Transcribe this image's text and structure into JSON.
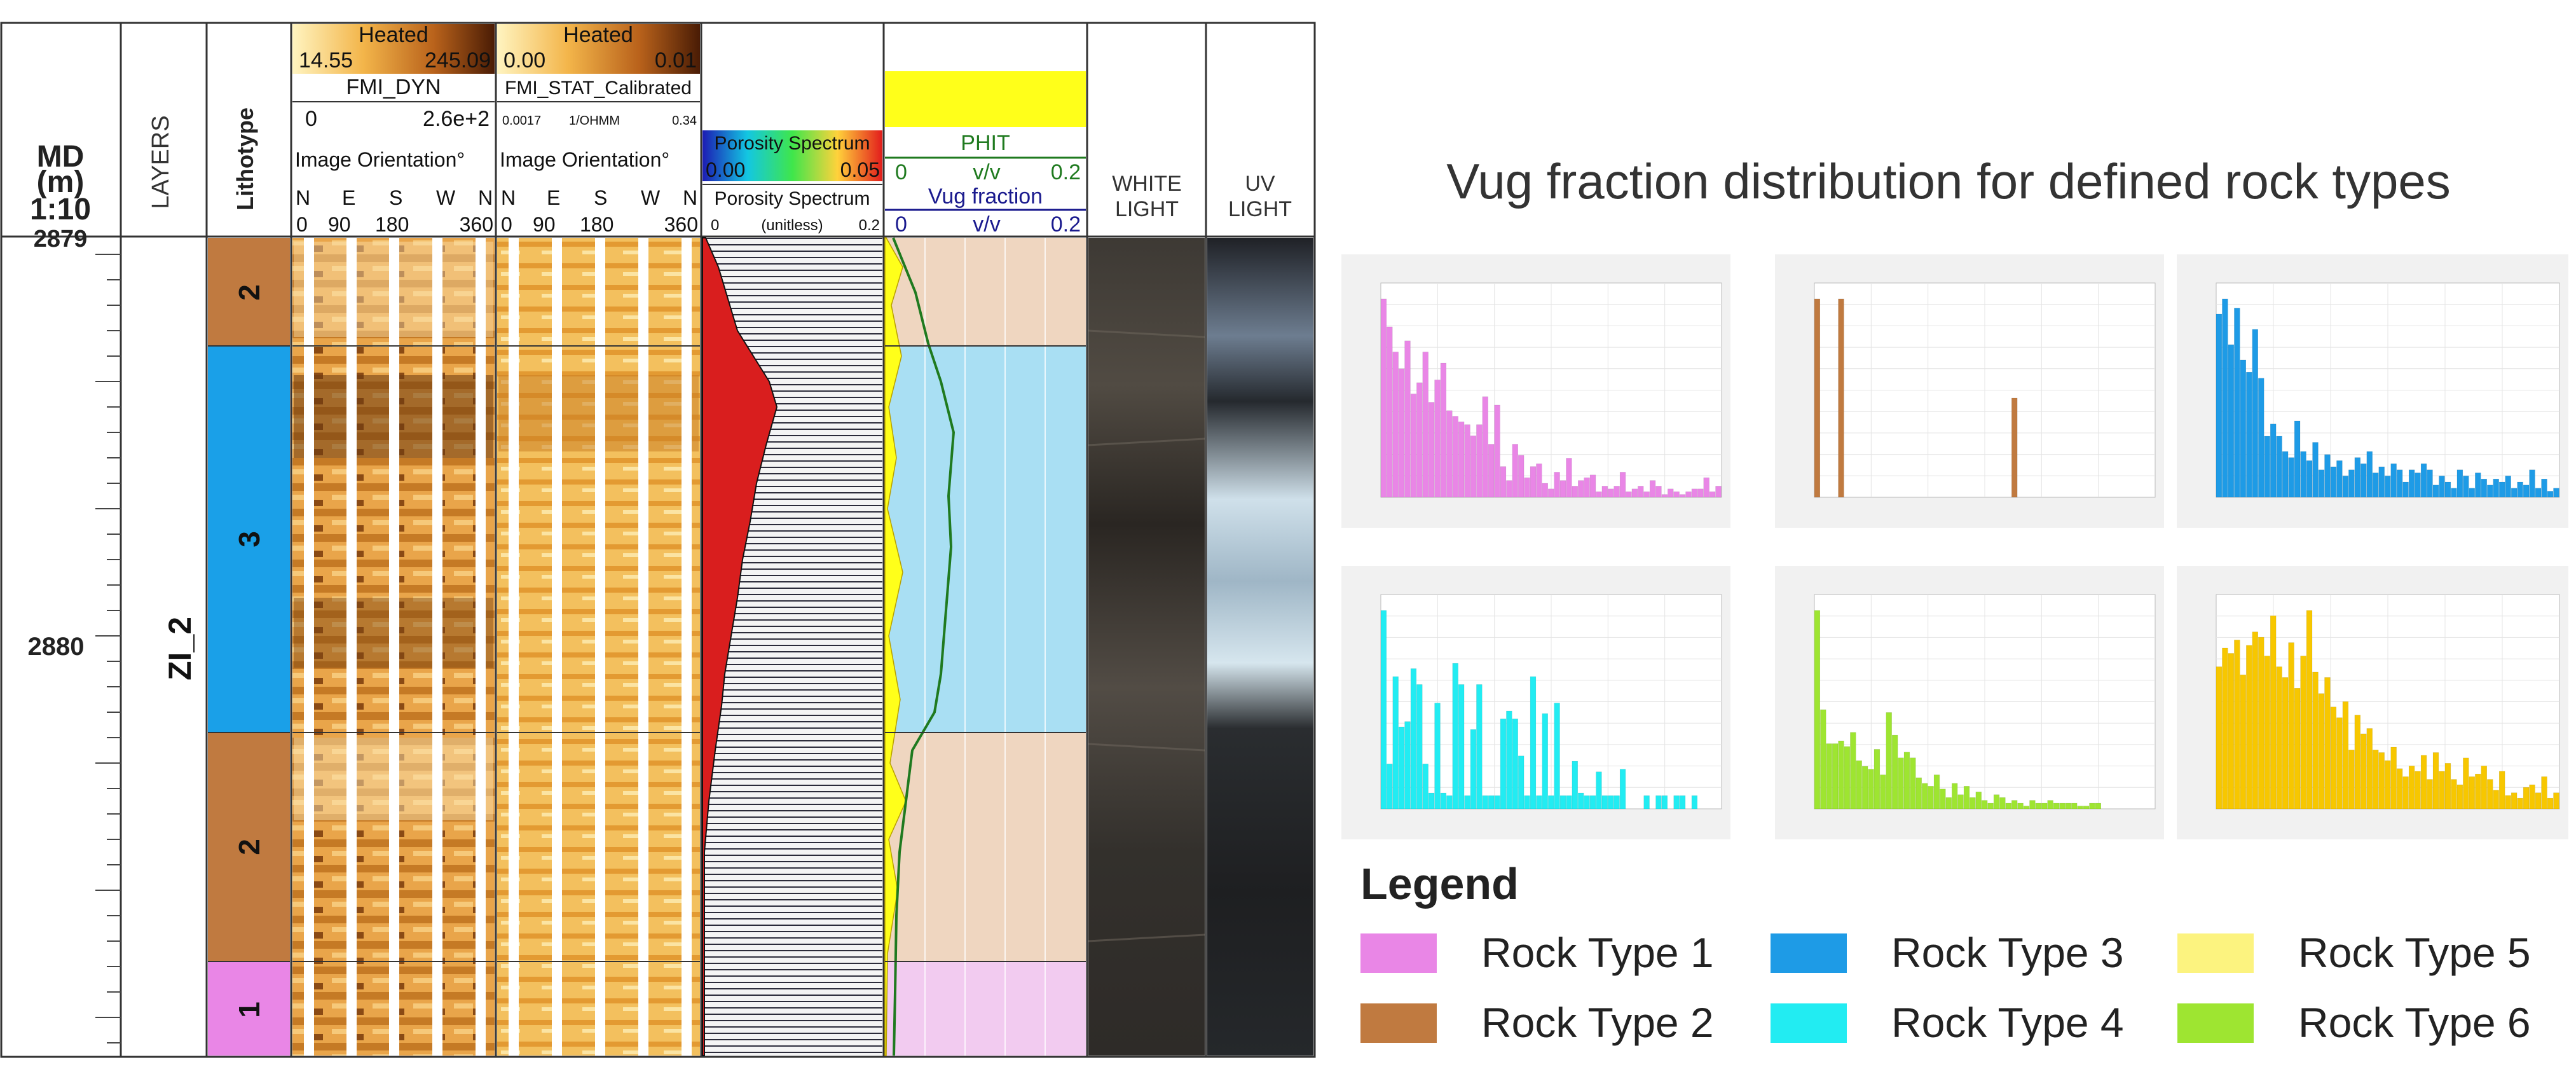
{
  "log": {
    "md_header": [
      "MD",
      "(m)",
      "1:10"
    ],
    "layers_header": "LAYERS",
    "lithotype_header": "Lithotype",
    "depth_labels": [
      "2879",
      "2880"
    ],
    "zone_label": "ZI_2",
    "fmi_dyn": {
      "scale_name": "Heated",
      "min": "14.55",
      "max": "245.09",
      "name": "FMI_DYN",
      "range_min": "0",
      "range_max": "2.6e+2",
      "orientation_label": "Image Orientation°",
      "dirs": [
        "N",
        "E",
        "S",
        "W",
        "N"
      ],
      "ticks": [
        "0",
        "90",
        "180",
        "360"
      ]
    },
    "fmi_stat": {
      "scale_name": "Heated",
      "min": "0.00",
      "max": "0.01",
      "name": "FMI_STAT_Calibrated",
      "range_min": "0.0017",
      "unit": "1/OHMM",
      "range_max": "0.34",
      "orientation_label": "Image Orientation°",
      "dirs": [
        "N",
        "E",
        "S",
        "W",
        "N"
      ],
      "ticks": [
        "0",
        "90",
        "180",
        "360"
      ]
    },
    "porosity_spectrum": {
      "colorbar_label": "Porosity Spectrum",
      "min": "0.00",
      "max": "0.05",
      "name": "Porosity Spectrum",
      "range_min": "0",
      "unit": "(unitless)",
      "range_max": "0.2"
    },
    "phit": {
      "name": "PHIT",
      "min": "0",
      "unit": "v/v",
      "max": "0.2"
    },
    "vug": {
      "name": "Vug fraction",
      "min": "0",
      "unit": "v/v",
      "max": "0.2"
    },
    "white_light": [
      "WHITE",
      "LIGHT"
    ],
    "uv_light": [
      "UV",
      "LIGHT"
    ],
    "litho_segments": [
      {
        "label": "2",
        "color": "#c07a40",
        "fill": "#efd6c0"
      },
      {
        "label": "3",
        "color": "#1aa0e8",
        "fill": "#a9dff3"
      },
      {
        "label": "2",
        "color": "#c07a40",
        "fill": "#efd6c0"
      },
      {
        "label": "1",
        "color": "#e986e6",
        "fill": "#f2cbf0"
      }
    ]
  },
  "title": "Vug fraction distribution for defined rock types",
  "legend": {
    "title": "Legend",
    "items": [
      {
        "label": "Rock Type 1",
        "color": "#e986e6"
      },
      {
        "label": "Rock Type 2",
        "color": "#c07a40"
      },
      {
        "label": "Rock Type 3",
        "color": "#1e9be6"
      },
      {
        "label": "Rock Type 4",
        "color": "#22ecf2"
      },
      {
        "label": "Rock Type 5",
        "color": "#fcf37f"
      },
      {
        "label": "Rock Type 6",
        "color": "#9ee531"
      }
    ]
  },
  "chart_data": [
    {
      "type": "bar",
      "series": [
        {
          "name": "Rock Type 1",
          "color": "#e986e6",
          "values": [
            0.071,
            0.061,
            0.052,
            0.046,
            0.056,
            0.037,
            0.041,
            0.052,
            0.034,
            0.042,
            0.048,
            0.031,
            0.029,
            0.027,
            0.026,
            0.022,
            0.026,
            0.036,
            0.019,
            0.033,
            0.011,
            0.006,
            0.019,
            0.015,
            0.007,
            0.011,
            0.012,
            0.005,
            0.003,
            0.009,
            0.006,
            0.014,
            0.004,
            0.006,
            0.007,
            0.008,
            0.002,
            0.004,
            0.003,
            0.004,
            0.009,
            0.002,
            0.003,
            0.004,
            0.002,
            0.006,
            0.004,
            0.001,
            0.003,
            0.002,
            0.001,
            0.002,
            0.003,
            0.003,
            0.007,
            0.002,
            0.004
          ]
        }
      ]
    },
    {
      "type": "bar",
      "series": [
        {
          "name": "Rock Type 2",
          "color": "#c07a40",
          "values": [
            0.07,
            0,
            0,
            0,
            0.07,
            0,
            0,
            0,
            0,
            0,
            0,
            0,
            0,
            0,
            0,
            0,
            0,
            0,
            0,
            0,
            0,
            0,
            0,
            0,
            0,
            0,
            0,
            0,
            0,
            0,
            0,
            0,
            0,
            0.035,
            0,
            0,
            0,
            0,
            0,
            0,
            0,
            0,
            0,
            0,
            0,
            0,
            0,
            0,
            0,
            0,
            0,
            0,
            0,
            0,
            0,
            0,
            0
          ]
        }
      ]
    },
    {
      "type": "bar",
      "series": [
        {
          "name": "Rock Type 3",
          "color": "#1e9be6",
          "values": [
            0.06,
            0.065,
            0.05,
            0.062,
            0.045,
            0.041,
            0.055,
            0.039,
            0.02,
            0.024,
            0.02,
            0.015,
            0.013,
            0.025,
            0.015,
            0.012,
            0.018,
            0.009,
            0.014,
            0.01,
            0.012,
            0.007,
            0.009,
            0.013,
            0.011,
            0.015,
            0.008,
            0.01,
            0.007,
            0.011,
            0.009,
            0.005,
            0.009,
            0.008,
            0.011,
            0.009,
            0.004,
            0.007,
            0.005,
            0.003,
            0.009,
            0.007,
            0.003,
            0.008,
            0.006,
            0.004,
            0.006,
            0.005,
            0.007,
            0.003,
            0.005,
            0.004,
            0.009,
            0.003,
            0.006,
            0.002,
            0.003
          ]
        }
      ]
    },
    {
      "type": "bar",
      "series": [
        {
          "name": "Rock Type 4",
          "color": "#22ecf2",
          "values": [
            0.075,
            0.017,
            0.05,
            0.031,
            0.033,
            0.053,
            0.047,
            0.017,
            0.006,
            0.04,
            0.006,
            0.005,
            0.055,
            0.047,
            0.005,
            0.03,
            0.047,
            0.005,
            0.005,
            0.005,
            0.034,
            0.037,
            0.034,
            0.02,
            0.005,
            0.05,
            0.005,
            0.036,
            0.005,
            0.04,
            0.005,
            0.005,
            0.018,
            0.006,
            0.005,
            0.005,
            0.014,
            0.005,
            0.005,
            0.005,
            0.015,
            0,
            0,
            0,
            0.005,
            0,
            0.005,
            0.005,
            0,
            0.005,
            0.005,
            0,
            0.005,
            0,
            0,
            0,
            0
          ]
        }
      ]
    },
    {
      "type": "bar",
      "series": [
        {
          "name": "Rock Type 6",
          "color": "#9ee531",
          "values": [
            0.07,
            0.035,
            0.023,
            0.023,
            0.024,
            0.022,
            0.027,
            0.017,
            0.015,
            0.014,
            0.021,
            0.012,
            0.034,
            0.026,
            0.018,
            0.02,
            0.018,
            0.011,
            0.009,
            0.008,
            0.012,
            0.007,
            0.004,
            0.009,
            0.005,
            0.008,
            0.004,
            0.006,
            0.003,
            0.002,
            0.005,
            0.004,
            0.002,
            0.003,
            0.002,
            0.001,
            0.003,
            0.002,
            0.002,
            0.003,
            0.002,
            0.002,
            0.002,
            0.002,
            0.001,
            0.001,
            0.002,
            0.002,
            0,
            0,
            0,
            0,
            0,
            0,
            0,
            0,
            0
          ]
        }
      ]
    },
    {
      "type": "bar",
      "series": [
        {
          "name": "Rock Type 5",
          "color": "#f7c700",
          "values": [
            0.053,
            0.06,
            0.058,
            0.063,
            0.05,
            0.061,
            0.066,
            0.064,
            0.057,
            0.072,
            0.053,
            0.049,
            0.062,
            0.045,
            0.057,
            0.074,
            0.051,
            0.043,
            0.049,
            0.038,
            0.034,
            0.04,
            0.022,
            0.035,
            0.028,
            0.03,
            0.022,
            0.021,
            0.018,
            0.023,
            0.015,
            0.012,
            0.016,
            0.014,
            0.02,
            0.011,
            0.021,
            0.014,
            0.017,
            0.011,
            0.009,
            0.019,
            0.012,
            0.013,
            0.016,
            0.011,
            0.007,
            0.014,
            0.005,
            0.006,
            0.004,
            0.008,
            0.009,
            0.006,
            0.012,
            0.004,
            0.006
          ]
        }
      ]
    }
  ]
}
